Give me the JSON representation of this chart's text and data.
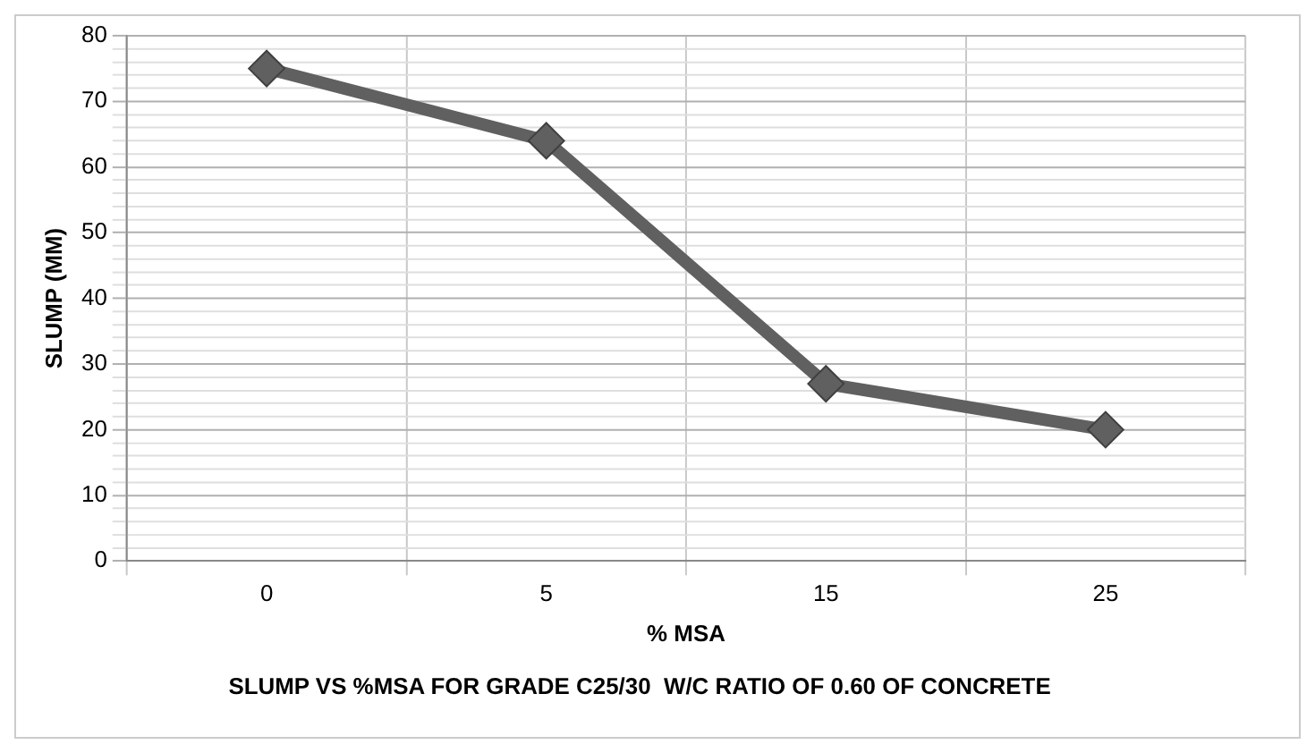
{
  "chart_data": {
    "type": "line",
    "title": "SLUMP VS %MSA FOR GRADE C25/30  W/C RATIO OF 0.60 OF CONCRETE",
    "xlabel": "% MSA",
    "ylabel": "SLUMP (MM)",
    "categories": [
      "0",
      "5",
      "15",
      "25"
    ],
    "series": [
      {
        "color": "#606060",
        "values": [
          75,
          64,
          27,
          20
        ]
      }
    ],
    "ylim": [
      0,
      80
    ],
    "yticks": [
      0,
      {
        "value": 2,
        "label": null
      },
      {
        "value": 4,
        "label": null
      },
      {
        "value": 6,
        "label": null
      },
      {
        "value": 8,
        "label": null
      },
      10,
      {
        "value": 12,
        "label": null
      },
      {
        "value": 14,
        "label": null
      },
      {
        "value": 16,
        "label": null
      },
      {
        "value": 18,
        "label": null
      },
      20,
      {
        "value": 22,
        "label": null
      },
      {
        "value": 24,
        "label": null
      },
      {
        "value": 26,
        "label": null
      },
      {
        "value": 28,
        "label": null
      },
      30,
      {
        "value": 32,
        "label": null
      },
      {
        "value": 34,
        "label": null
      },
      {
        "value": 36,
        "label": null
      },
      {
        "value": 38,
        "label": null
      },
      40,
      {
        "value": 42,
        "label": null
      },
      {
        "value": 44,
        "label": null
      },
      {
        "value": 46,
        "label": null
      },
      {
        "value": 48,
        "label": null
      },
      50,
      {
        "value": 52,
        "label": null
      },
      {
        "value": 54,
        "label": null
      },
      {
        "value": 56,
        "label": null
      },
      {
        "value": 58,
        "label": null
      },
      60,
      {
        "value": 62,
        "label": null
      },
      {
        "value": 64,
        "label": null
      },
      {
        "value": 66,
        "label": null
      },
      {
        "value": 68,
        "label": null
      },
      70,
      {
        "value": 72,
        "label": null
      },
      {
        "value": 74,
        "label": null
      },
      {
        "value": 76,
        "label": null
      },
      {
        "value": 78,
        "label": null
      },
      80
    ],
    "grid": true,
    "marker": "diamond",
    "line_style": "solid"
  }
}
